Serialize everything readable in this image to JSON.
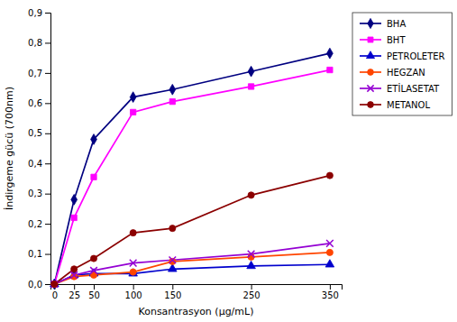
{
  "chart_data": {
    "type": "line",
    "xlabel": "Konsantrasyon (µg/mL)",
    "ylabel": "İndirgeme gücü (700nm)",
    "x": [
      0,
      25,
      50,
      100,
      150,
      250,
      350
    ],
    "series": [
      {
        "name": "BHA",
        "color": "#000080",
        "marker": "diamond",
        "values": [
          0.0,
          0.28,
          0.48,
          0.62,
          0.645,
          0.705,
          0.765
        ]
      },
      {
        "name": "BHT",
        "color": "#FF00FF",
        "marker": "square",
        "values": [
          0.0,
          0.22,
          0.355,
          0.57,
          0.605,
          0.655,
          0.71
        ]
      },
      {
        "name": "PETROLETER",
        "color": "#0000CD",
        "marker": "triangle",
        "values": [
          0.0,
          0.03,
          0.035,
          0.035,
          0.05,
          0.06,
          0.065
        ]
      },
      {
        "name": "HEGZAN",
        "color": "#FF4500",
        "marker": "circle",
        "values": [
          0.0,
          0.025,
          0.03,
          0.04,
          0.075,
          0.09,
          0.105
        ]
      },
      {
        "name": "ETİLASETAT",
        "color": "#9400D3",
        "marker": "x",
        "values": [
          0.0,
          0.03,
          0.045,
          0.07,
          0.08,
          0.1,
          0.135
        ]
      },
      {
        "name": "METANOL",
        "color": "#8B0000",
        "marker": "circle",
        "values": [
          0.0,
          0.05,
          0.085,
          0.17,
          0.185,
          0.295,
          0.36
        ]
      }
    ],
    "xlim": [
      -5,
      365
    ],
    "xticks": [
      0,
      25,
      50,
      100,
      150,
      250,
      350
    ],
    "ylim": [
      0.0,
      0.9
    ],
    "yticks": [
      {
        "value": 0.0,
        "label": "0,0"
      },
      {
        "value": 0.1,
        "label": "0,1"
      },
      {
        "value": 0.2,
        "label": "0,2"
      },
      {
        "value": 0.3,
        "label": "0,3"
      },
      {
        "value": 0.4,
        "label": "0,4"
      },
      {
        "value": 0.5,
        "label": "0,5"
      },
      {
        "value": 0.6,
        "label": "0,6"
      },
      {
        "value": 0.7,
        "label": "0,7"
      },
      {
        "value": 0.8,
        "label": "0,8"
      },
      {
        "value": 0.9,
        "label": "0,9"
      }
    ],
    "grid": false,
    "legend": "right"
  }
}
